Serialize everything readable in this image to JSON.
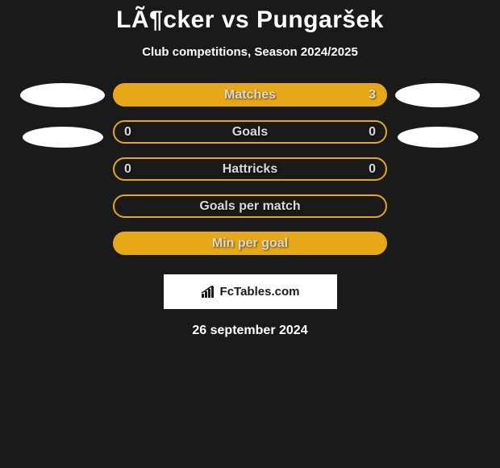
{
  "title": "LÃ¶cker vs Pungaršek",
  "subtitle": "Club competitions, Season 2024/2025",
  "stats": [
    {
      "label": "Matches",
      "left_value": "",
      "right_value": "3",
      "filled": true,
      "border_color": "#e6a817",
      "fill_color": "#e6a817"
    },
    {
      "label": "Goals",
      "left_value": "0",
      "right_value": "0",
      "filled": false,
      "border_color": "#e6a817",
      "fill_color": "transparent"
    },
    {
      "label": "Hattricks",
      "left_value": "0",
      "right_value": "0",
      "filled": false,
      "border_color": "#e6a817",
      "fill_color": "transparent"
    },
    {
      "label": "Goals per match",
      "left_value": "",
      "right_value": "",
      "filled": false,
      "border_color": "#e6a817",
      "fill_color": "transparent"
    },
    {
      "label": "Min per goal",
      "left_value": "",
      "right_value": "",
      "filled": true,
      "border_color": "#e6a817",
      "fill_color": "#e6a817"
    }
  ],
  "ellipses": {
    "left": {
      "color": "#ffffff"
    },
    "right": {
      "color": "#ffffff"
    }
  },
  "logo": {
    "text": "FcTables.com",
    "bg_color": "#ffffff"
  },
  "date": "26 september 2024",
  "colors": {
    "background": "#1a1a1a",
    "text_white": "#ffffff",
    "text_label": "#d8d8d8",
    "accent": "#e6a817"
  }
}
